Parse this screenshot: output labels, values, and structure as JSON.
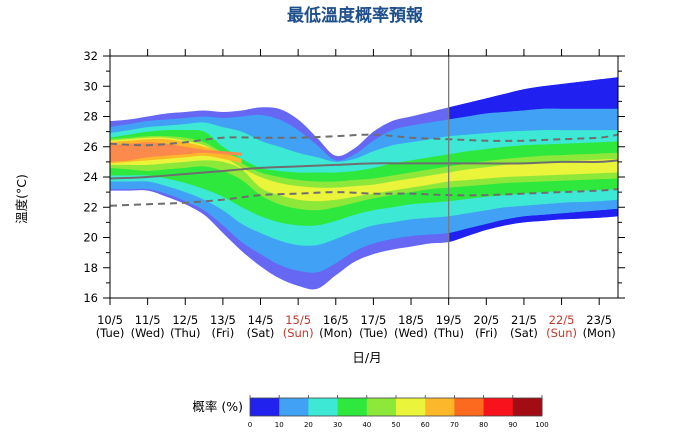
{
  "chart_data": {
    "type": "area",
    "title": "最低溫度概率預報",
    "xlabel": "日/月",
    "ylabel": "溫度(°C)",
    "ylim": [
      16,
      32
    ],
    "yticks": [
      16,
      18,
      20,
      22,
      24,
      26,
      28,
      30,
      32
    ],
    "grid": false,
    "divider_label_index": 9,
    "categories": [
      {
        "date": "10/5",
        "day": "(Tue)",
        "holiday": false
      },
      {
        "date": "11/5",
        "day": "(Wed)",
        "holiday": false
      },
      {
        "date": "12/5",
        "day": "(Thu)",
        "holiday": false
      },
      {
        "date": "13/5",
        "day": "(Fri)",
        "holiday": false
      },
      {
        "date": "14/5",
        "day": "(Sat)",
        "holiday": false
      },
      {
        "date": "15/5",
        "day": "(Sun)",
        "holiday": true
      },
      {
        "date": "16/5",
        "day": "(Mon)",
        "holiday": false
      },
      {
        "date": "17/5",
        "day": "(Tue)",
        "holiday": false
      },
      {
        "date": "18/5",
        "day": "(Wed)",
        "holiday": false
      },
      {
        "date": "19/5",
        "day": "(Thu)",
        "holiday": false
      },
      {
        "date": "20/5",
        "day": "(Fri)",
        "holiday": false
      },
      {
        "date": "21/5",
        "day": "(Sat)",
        "holiday": false
      },
      {
        "date": "22/5",
        "day": "(Sun)",
        "holiday": true
      },
      {
        "date": "23/5",
        "day": "(Mon)",
        "holiday": false
      }
    ],
    "x": [
      0,
      0.5,
      1,
      1.5,
      2,
      2.5,
      3,
      3.5,
      4,
      4.5,
      5,
      5.5,
      6,
      6.5,
      7,
      7.5,
      8,
      8.5,
      9,
      9.5,
      10,
      10.5,
      11,
      11.5,
      12,
      12.5,
      13,
      13.5
    ],
    "bands": [
      {
        "level": 0,
        "lower": [
          23.1,
          23.1,
          23.1,
          22.7,
          22.2,
          21.5,
          20.3,
          19.1,
          18.1,
          17.3,
          16.8,
          16.6,
          17.5,
          18.4,
          18.9,
          19.2,
          19.4,
          19.6,
          19.7,
          20.1,
          20.5,
          20.8,
          21.0,
          21.1,
          21.2,
          21.25,
          21.3,
          21.4
        ],
        "upper": [
          27.7,
          27.8,
          28.0,
          28.2,
          28.3,
          28.4,
          28.3,
          28.4,
          28.6,
          28.5,
          27.8,
          26.6,
          25.4,
          25.9,
          27.0,
          27.7,
          28.0,
          28.3,
          28.6,
          28.9,
          29.2,
          29.5,
          29.8,
          30.0,
          30.15,
          30.3,
          30.45,
          30.6
        ]
      },
      {
        "level": 1,
        "lower": [
          23.2,
          23.2,
          23.2,
          22.9,
          22.4,
          21.8,
          20.8,
          19.7,
          18.9,
          18.2,
          17.8,
          17.7,
          18.3,
          19.1,
          19.6,
          19.9,
          20.1,
          20.2,
          20.3,
          20.6,
          20.9,
          21.2,
          21.4,
          21.5,
          21.6,
          21.7,
          21.8,
          21.9
        ],
        "upper": [
          27.3,
          27.5,
          27.7,
          27.8,
          27.9,
          28.0,
          27.9,
          28.0,
          28.1,
          27.8,
          27.1,
          26.1,
          25.1,
          25.5,
          26.4,
          27.1,
          27.4,
          27.6,
          27.8,
          28.0,
          28.2,
          28.3,
          28.4,
          28.5,
          28.5,
          28.5,
          28.5,
          28.5
        ]
      },
      {
        "level": 2,
        "lower": [
          23.7,
          23.7,
          23.7,
          23.4,
          23.0,
          22.5,
          21.8,
          20.9,
          20.3,
          19.8,
          19.5,
          19.5,
          19.9,
          20.4,
          20.8,
          21.0,
          21.2,
          21.3,
          21.4,
          21.6,
          21.8,
          22.0,
          22.1,
          22.2,
          22.3,
          22.35,
          22.4,
          22.5
        ],
        "upper": [
          26.9,
          27.1,
          27.3,
          27.4,
          27.5,
          27.6,
          27.3,
          27.0,
          26.4,
          26.0,
          25.6,
          25.3,
          25.0,
          25.2,
          25.7,
          26.1,
          26.3,
          26.5,
          26.7,
          26.8,
          26.9,
          27.0,
          27.05,
          27.1,
          27.1,
          27.1,
          27.1,
          27.1
        ]
      },
      {
        "level": 3,
        "lower": [
          24.1,
          24.1,
          24.1,
          23.9,
          23.6,
          23.2,
          22.7,
          22.0,
          21.4,
          21.0,
          20.8,
          20.8,
          21.1,
          21.5,
          21.8,
          22.0,
          22.2,
          22.3,
          22.4,
          22.55,
          22.7,
          22.8,
          22.9,
          23.0,
          23.05,
          23.1,
          23.15,
          23.2
        ],
        "upper": [
          26.6,
          26.8,
          27.0,
          27.1,
          27.1,
          27.0,
          26.0,
          25.2,
          24.6,
          24.4,
          24.3,
          24.3,
          24.3,
          24.4,
          24.6,
          24.9,
          25.1,
          25.3,
          25.5,
          25.7,
          25.85,
          26.0,
          26.1,
          26.15,
          26.2,
          26.25,
          26.3,
          26.35
        ]
      },
      {
        "level": 4,
        "lower": [
          24.6,
          24.5,
          24.4,
          24.5,
          24.6,
          24.7,
          24.4,
          23.8,
          22.8,
          22.2,
          21.9,
          21.8,
          22.0,
          22.3,
          22.6,
          22.8,
          23.0,
          23.2,
          23.3,
          23.4,
          23.5,
          23.6,
          23.65,
          23.7,
          23.75,
          23.8,
          23.85,
          23.9
        ],
        "upper": [
          26.5,
          26.6,
          26.7,
          26.7,
          26.6,
          26.3,
          25.6,
          24.9,
          24.3,
          24.0,
          23.8,
          23.7,
          23.7,
          23.8,
          23.9,
          24.1,
          24.3,
          24.5,
          24.7,
          24.9,
          25.05,
          25.2,
          25.3,
          25.4,
          25.45,
          25.5,
          25.55,
          25.6
        ]
      },
      {
        "level": 5,
        "lower": [
          24.8,
          24.8,
          24.8,
          24.9,
          25.0,
          25.1,
          25.0,
          24.5,
          23.3,
          22.8,
          22.5,
          22.4,
          22.5,
          22.7,
          22.9,
          23.1,
          23.3,
          23.5,
          23.7,
          23.8,
          23.9,
          24.0,
          24.05,
          24.1,
          24.15,
          24.2,
          24.25,
          24.3
        ],
        "upper": [
          26.4,
          26.5,
          26.6,
          26.6,
          26.4,
          26.1,
          25.4,
          24.6,
          24.0,
          23.6,
          23.4,
          23.3,
          23.3,
          23.4,
          23.5,
          23.7,
          23.9,
          24.1,
          24.3,
          24.5,
          24.65,
          24.8,
          24.9,
          25.0,
          25.05,
          25.1,
          25.15,
          25.2
        ]
      },
      {
        "level": 6,
        "lower": [
          24.9,
          25.0,
          25.1,
          25.2,
          25.3,
          25.4,
          25.2,
          24.9,
          null,
          null,
          null,
          null,
          null,
          null,
          null,
          null,
          null,
          null,
          null,
          null,
          null,
          null,
          null,
          null,
          null,
          null,
          null,
          null
        ],
        "upper": [
          26.3,
          26.4,
          26.5,
          26.5,
          26.3,
          26.0,
          25.6,
          25.2,
          null,
          null,
          null,
          null,
          null,
          null,
          null,
          null,
          null,
          null,
          null,
          null,
          null,
          null,
          null,
          null,
          null,
          null,
          null,
          null
        ]
      },
      {
        "level": 7,
        "lower": [
          25.0,
          25.1,
          25.3,
          25.4,
          25.5,
          25.6,
          25.5,
          25.4,
          null,
          null,
          null,
          null,
          null,
          null,
          null,
          null,
          null,
          null,
          null,
          null,
          null,
          null,
          null,
          null,
          null,
          null,
          null,
          null
        ],
        "upper": [
          26.1,
          26.2,
          26.3,
          26.2,
          26.0,
          25.8,
          25.7,
          25.6,
          null,
          null,
          null,
          null,
          null,
          null,
          null,
          null,
          null,
          null,
          null,
          null,
          null,
          null,
          null,
          null,
          null,
          null,
          null,
          null
        ]
      }
    ],
    "lines": [
      {
        "name": "upper-climatology",
        "style": "dashed",
        "x": [
          0,
          1,
          2,
          3,
          4,
          5,
          6,
          7,
          8,
          9,
          10,
          11,
          12,
          13,
          13.5
        ],
        "values": [
          26.2,
          26.1,
          26.3,
          26.6,
          26.6,
          26.6,
          26.7,
          26.8,
          26.6,
          26.5,
          26.4,
          26.4,
          26.5,
          26.6,
          26.8
        ]
      },
      {
        "name": "mean",
        "style": "solid",
        "x": [
          0,
          1,
          2,
          3,
          4,
          5,
          6,
          7,
          8,
          9,
          10,
          11,
          12,
          13,
          13.5
        ],
        "values": [
          23.9,
          24.0,
          24.2,
          24.4,
          24.6,
          24.7,
          24.8,
          24.9,
          24.9,
          24.9,
          24.9,
          24.9,
          25.0,
          25.0,
          25.1
        ]
      },
      {
        "name": "lower-climatology",
        "style": "dashed",
        "x": [
          0,
          1,
          2,
          3,
          4,
          5,
          6,
          7,
          8,
          9,
          10,
          11,
          12,
          13,
          13.5
        ],
        "values": [
          22.1,
          22.2,
          22.3,
          22.5,
          22.8,
          22.9,
          23.0,
          22.9,
          22.9,
          22.8,
          22.8,
          22.9,
          23.0,
          23.1,
          23.2
        ]
      }
    ],
    "legend": {
      "title": "概率 (%)",
      "ticks": [
        "0",
        "10",
        "20",
        "30",
        "40",
        "50",
        "60",
        "70",
        "80",
        "90",
        "100"
      ],
      "colors": [
        "#2222ee",
        "#41a2f5",
        "#3de8d5",
        "#2fe83e",
        "#8ee83a",
        "#eaf43a",
        "#fdb72a",
        "#fb6a1f",
        "#f8121c",
        "#a10d13"
      ]
    },
    "colors": {
      "band_fill": [
        "#6668f4",
        "#41a2f5",
        "#3de8d5",
        "#2fe83e",
        "#8ee83a",
        "#eaf43a",
        "#fdb72a",
        "#fb8a4c"
      ],
      "outer_fill_after_divider": "#2020f0",
      "title": "#1f4e8c",
      "holiday": "#c0392b",
      "line": "#6e6e6e",
      "divider": "#7a7a7a"
    }
  }
}
